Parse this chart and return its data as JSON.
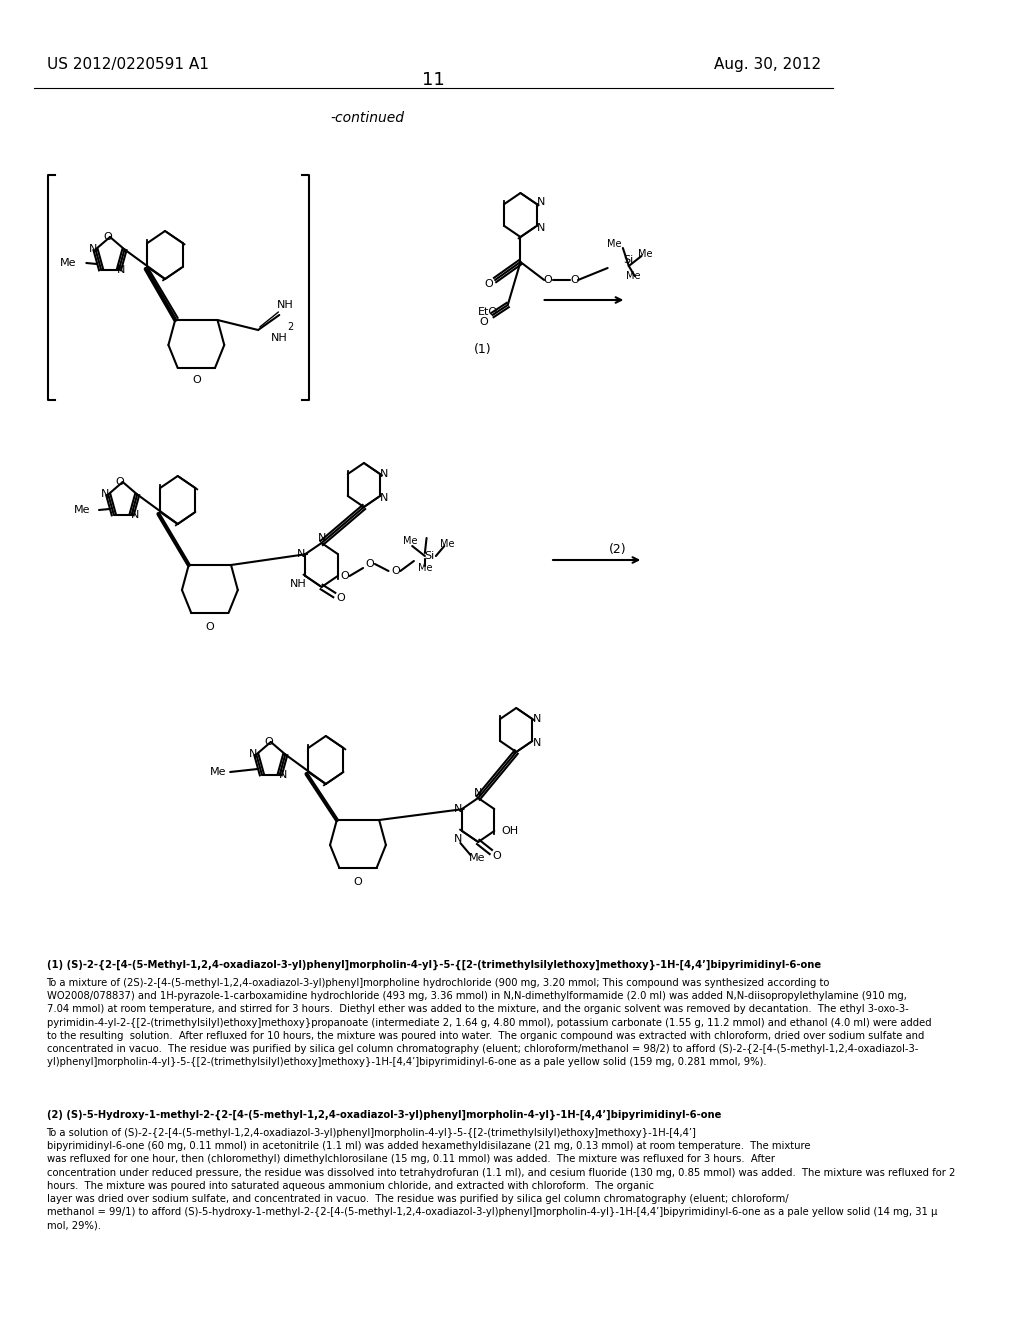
{
  "page_number": "11",
  "patent_left": "US 2012/0220591 A1",
  "patent_right": "Aug. 30, 2012",
  "continued_label": "-continued",
  "reaction_label_1": "(1)",
  "reaction_label_2": "(2)",
  "background_color": "#ffffff",
  "text_color": "#000000",
  "font_size_header": 11,
  "font_size_page": 13,
  "font_size_body": 7.2,
  "font_size_continued": 10,
  "paragraph1_title": "(1) (S)-2-{2-[4-(5-Methyl-1,2,4-oxadiazol-3-yl)phenyl]morpholin-4-yl}-5-{[2-(trimethylsilylethoxy]methoxy}-1H-[4,4’]bipyrimidinyl-6-one",
  "paragraph1_body": "To a mixture of (2S)-2-[4-(5-methyl-1,2,4-oxadiazol-3-yl)phenyl]morpholine hydrochloride (900 mg, 3.20 mmol; This compound was synthesized according to\nWO2008/078837) and 1H-pyrazole-1-carboxamidine hydrochloride (493 mg, 3.36 mmol) in N,N-dimethylformamide (2.0 ml) was added N,N-diisopropylethylamine (910 mg,\n7.04 mmol) at room temperature, and stirred for 3 hours.  Diethyl ether was added to the mixture, and the organic solvent was removed by decantation.  The ethyl 3-oxo-3-\npyrimidin-4-yl-2-{[2-(trimethylsilyl)ethoxy]methoxy}propanoate (intermediate 2, 1.64 g, 4.80 mmol), potassium carbonate (1.55 g, 11.2 mmol) and ethanol (4.0 ml) were added\nto the resulting  solution.  After refluxed for 10 hours, the mixture was poured into water.  The organic compound was extracted with chloroform, dried over sodium sulfate and\nconcentrated in vacuo.  The residue was purified by silica gel column chromatography (eluent; chloroform/methanol = 98/2) to afford (S)-2-{2-[4-(5-methyl-1,2,4-oxadiazol-3-\nyl)phenyl]morpholin-4-yl}-5-{[2-(trimethylsilyl)ethoxy]methoxy}-1H-[4,4’]bipyrimidinyl-6-one as a pale yellow solid (159 mg, 0.281 mmol, 9%).",
  "paragraph2_title": "(2) (S)-5-Hydroxy-1-methyl-2-{2-[4-(5-methyl-1,2,4-oxadiazol-3-yl)phenyl]morpholin-4-yl}-1H-[4,4’]bipyrimidinyl-6-one",
  "paragraph2_body": "To a solution of (S)-2-{2-[4-(5-methyl-1,2,4-oxadiazol-3-yl)phenyl]morpholin-4-yl}-5-{[2-(trimethylsilyl)ethoxy]methoxy}-1H-[4,4’]\nbipyrimidinyl-6-one (60 mg, 0.11 mmol) in acetonitrile (1.1 ml) was added hexamethyldisilazane (21 mg, 0.13 mmol) at room temperature.  The mixture\nwas refluxed for one hour, then (chloromethyl) dimethylchlorosilane (15 mg, 0.11 mmol) was added.  The mixture was refluxed for 3 hours.  After\nconcentration under reduced pressure, the residue was dissolved into tetrahydrofuran (1.1 ml), and cesium fluoride (130 mg, 0.85 mmol) was added.  The mixture was refluxed for 2\nhours.  The mixture was poured into saturated aqueous ammonium chloride, and extracted with chloroform.  The organic\nlayer was dried over sodium sulfate, and concentrated in vacuo.  The residue was purified by silica gel column chromatography (eluent; chloroform/\nmethanol = 99/1) to afford (S)-5-hydroxy-1-methyl-2-{2-[4-(5-methyl-1,2,4-oxadiazol-3-yl)phenyl]morpholin-4-yl}-1H-[4,4’]bipyrimidinyl-6-one as a pale yellow solid (14 mg, 31 μ\nmol, 29%)."
}
